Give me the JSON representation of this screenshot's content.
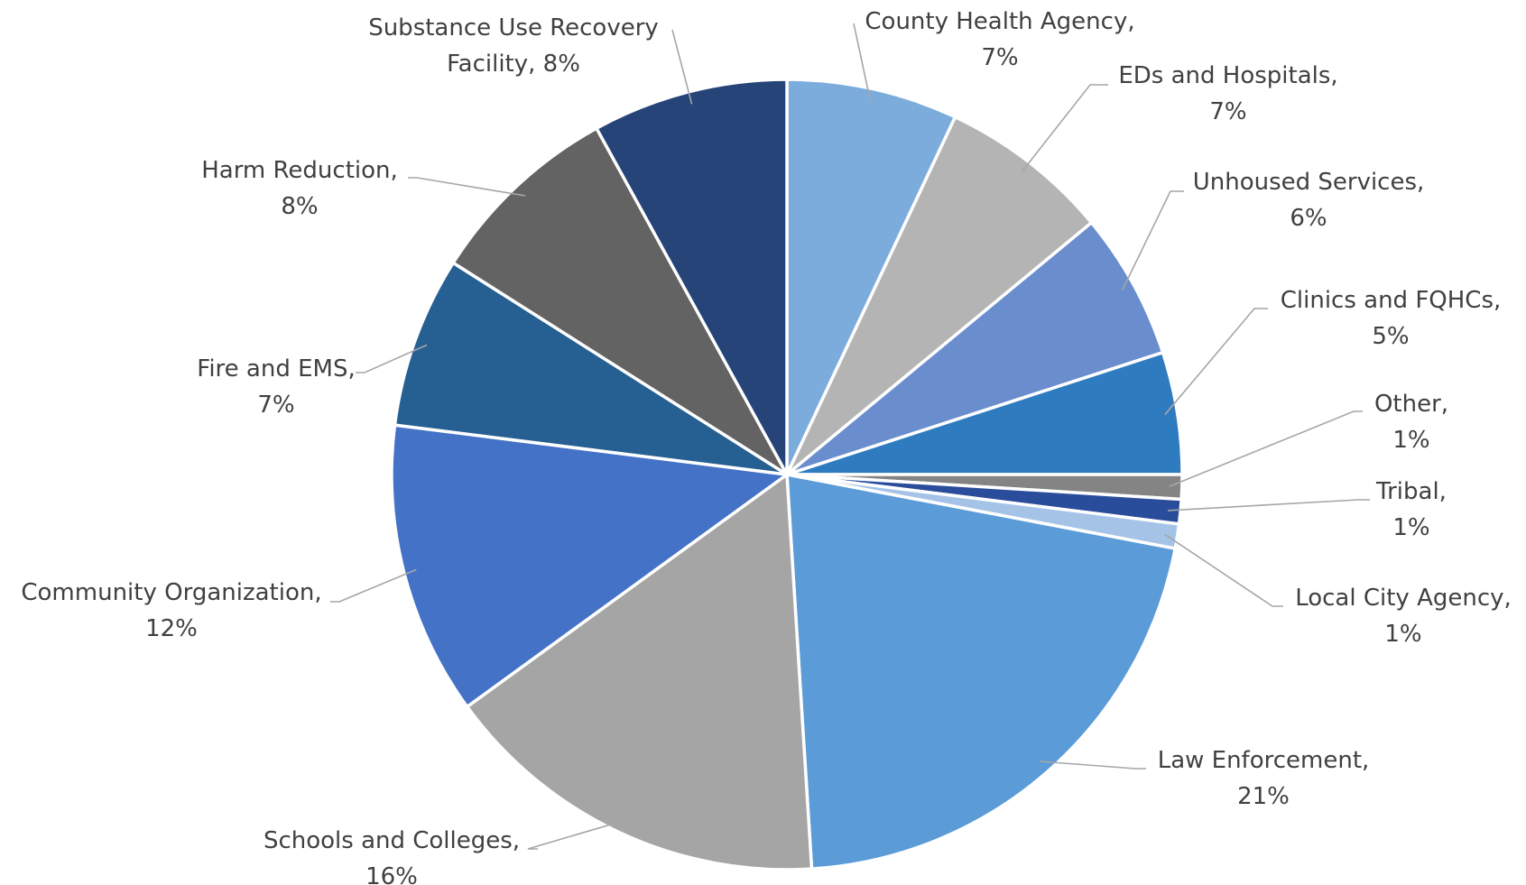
{
  "chart_data": {
    "type": "pie",
    "title": "",
    "legend": "none",
    "start_angle_deg": 0,
    "direction": "clockwise",
    "slices": [
      {
        "name": "County Health Agency",
        "label_lines": [
          "County Health Agency,",
          "7%"
        ],
        "value": 7,
        "color": "#7CACDC"
      },
      {
        "name": "EDs and Hospitals",
        "label_lines": [
          "EDs and Hospitals,",
          "7%"
        ],
        "value": 7,
        "color": "#B4B4B4"
      },
      {
        "name": "Unhoused Services",
        "label_lines": [
          "Unhoused Services,",
          "6%"
        ],
        "value": 6,
        "color": "#698DCD"
      },
      {
        "name": "Clinics and FQHCs",
        "label_lines": [
          "Clinics and FQHCs,",
          "5%"
        ],
        "value": 5,
        "color": "#2F7BC0"
      },
      {
        "name": "Other",
        "label_lines": [
          "Other,",
          "1%"
        ],
        "value": 1,
        "color": "#848484"
      },
      {
        "name": "Tribal",
        "label_lines": [
          "Tribal,",
          "1%"
        ],
        "value": 1,
        "color": "#2A4D9B"
      },
      {
        "name": "Local City Agency",
        "label_lines": [
          "Local City Agency,",
          "1%"
        ],
        "value": 1,
        "color": "#A4C3E7"
      },
      {
        "name": "Law Enforcement",
        "label_lines": [
          "Law Enforcement,",
          "21%"
        ],
        "value": 21,
        "color": "#5B9BD7"
      },
      {
        "name": "Schools and Colleges",
        "label_lines": [
          "Schools and Colleges,",
          "16%"
        ],
        "value": 16,
        "color": "#A5A5A5"
      },
      {
        "name": "Community Organization",
        "label_lines": [
          "Community Organization,",
          "12%"
        ],
        "value": 12,
        "color": "#4472C6"
      },
      {
        "name": "Fire and EMS",
        "label_lines": [
          "Fire and EMS,",
          "7%"
        ],
        "value": 7,
        "color": "#265F92"
      },
      {
        "name": "Harm Reduction",
        "label_lines": [
          "Harm Reduction,",
          "8%"
        ],
        "value": 8,
        "color": "#636363"
      },
      {
        "name": "Substance Use Recovery Facility",
        "label_lines": [
          "Substance Use Recovery",
          "Facility, 8%"
        ],
        "value": 8,
        "color": "#264478"
      }
    ]
  }
}
